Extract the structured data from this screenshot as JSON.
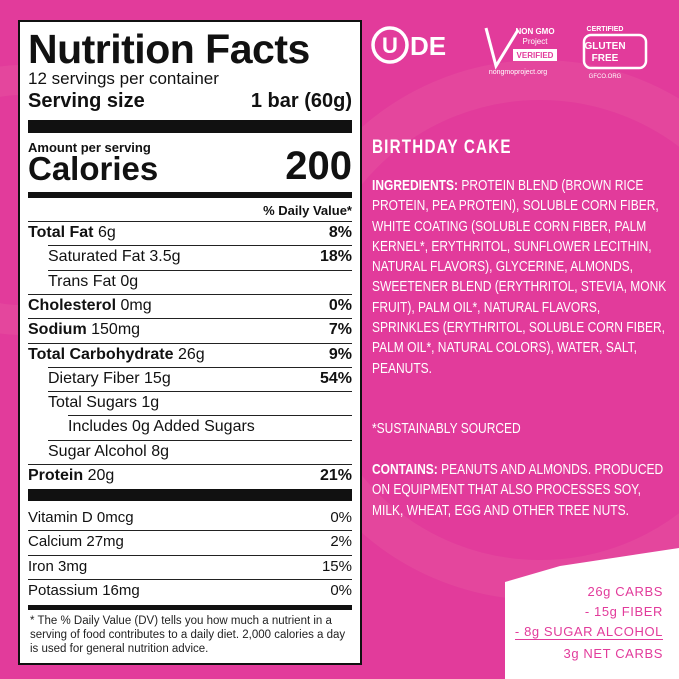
{
  "label": {
    "title": "Nutrition Facts",
    "servings": "12 servings per container",
    "serving_size_label": "Serving size",
    "serving_size": "1 bar (60g)",
    "amount_per_serving": "Amount per serving",
    "calories_label": "Calories",
    "calories": 200,
    "dv_header": "% Daily Value*",
    "nutrients": [
      {
        "name": "Total Fat",
        "amount": "6g",
        "dv": "8%"
      },
      {
        "name": "Saturated Fat",
        "amount": "3.5g",
        "dv": "18%"
      },
      {
        "name": "Trans Fat",
        "amount": "0g"
      },
      {
        "name": "Cholesterol",
        "amount": "0mg",
        "dv": "0%"
      },
      {
        "name": "Sodium",
        "amount": "150mg",
        "dv": "7%"
      },
      {
        "name": "Total Carbohydrate",
        "amount": "26g",
        "dv": "9%"
      },
      {
        "name": "Dietary Fiber",
        "amount": "15g",
        "dv": "54%"
      },
      {
        "name": "Total Sugars",
        "amount": "1g"
      },
      {
        "name": "Includes 0g Added Sugars"
      },
      {
        "name": "Sugar Alcohol",
        "amount": "8g"
      },
      {
        "name": "Protein",
        "amount": "20g",
        "dv": "21%"
      }
    ],
    "vitamins": [
      {
        "name": "Vitamin D",
        "amount": "0mcg",
        "dv": "0%"
      },
      {
        "name": "Calcium",
        "amount": "27mg",
        "dv": "2%"
      },
      {
        "name": "Iron",
        "amount": "3mg",
        "dv": "15%"
      },
      {
        "name": "Potassium",
        "amount": "16mg",
        "dv": "0%"
      }
    ],
    "footnote": "* The % Daily Value (DV) tells you how much a nutrient in a serving of food contributes to a daily diet. 2,000 calories a day is used for general nutrition advice."
  },
  "logos": {
    "brand_letter": "U",
    "brand_text": "DE",
    "nongmo_top": "NON GMO",
    "nongmo_mid": "Project",
    "nongmo_verified": "VERIFIED",
    "nongmo_url": "nongmoproject.org",
    "gf_certified": "CERTIFIED",
    "gf_line1": "GLUTEN",
    "gf_line2": "FREE",
    "gf_url": "GFCO.ORG"
  },
  "product": {
    "flavor": "BIRTHDAY CAKE",
    "ingredients_label": "INGREDIENTS:",
    "ingredients": "PROTEIN BLEND (BROWN RICE PROTEIN, PEA PROTEIN), SOLUBLE CORN FIBER, WHITE COATING (SOLUBLE CORN FIBER, PALM KERNEL*, ERYTHRITOL, SUNFLOWER LECITHIN, NATURAL FLAVORS), GLYCERINE, ALMONDS, SWEETENER BLEND (ERYTHRITOL, STEVIA, MONK FRUIT), PALM OIL*, NATURAL FLAVORS, SPRINKLES (ERYTHRITOL, SOLUBLE CORN FIBER, PALM OIL*, NATURAL COLORS), WATER, SALT, PEANUTS.",
    "note": "*SUSTAINABLY SOURCED",
    "contains_label": "CONTAINS:",
    "contains": "PEANUTS AND ALMONDS. PRODUCED ON EQUIPMENT THAT ALSO PROCESSES  SOY, MILK, WHEAT, EGG AND OTHER TREE NUTS."
  },
  "net_carbs": {
    "lines": [
      "26g CARBS",
      "- 15g FIBER",
      "- 8g SUGAR ALCOHOL",
      "3g NET CARBS"
    ]
  }
}
